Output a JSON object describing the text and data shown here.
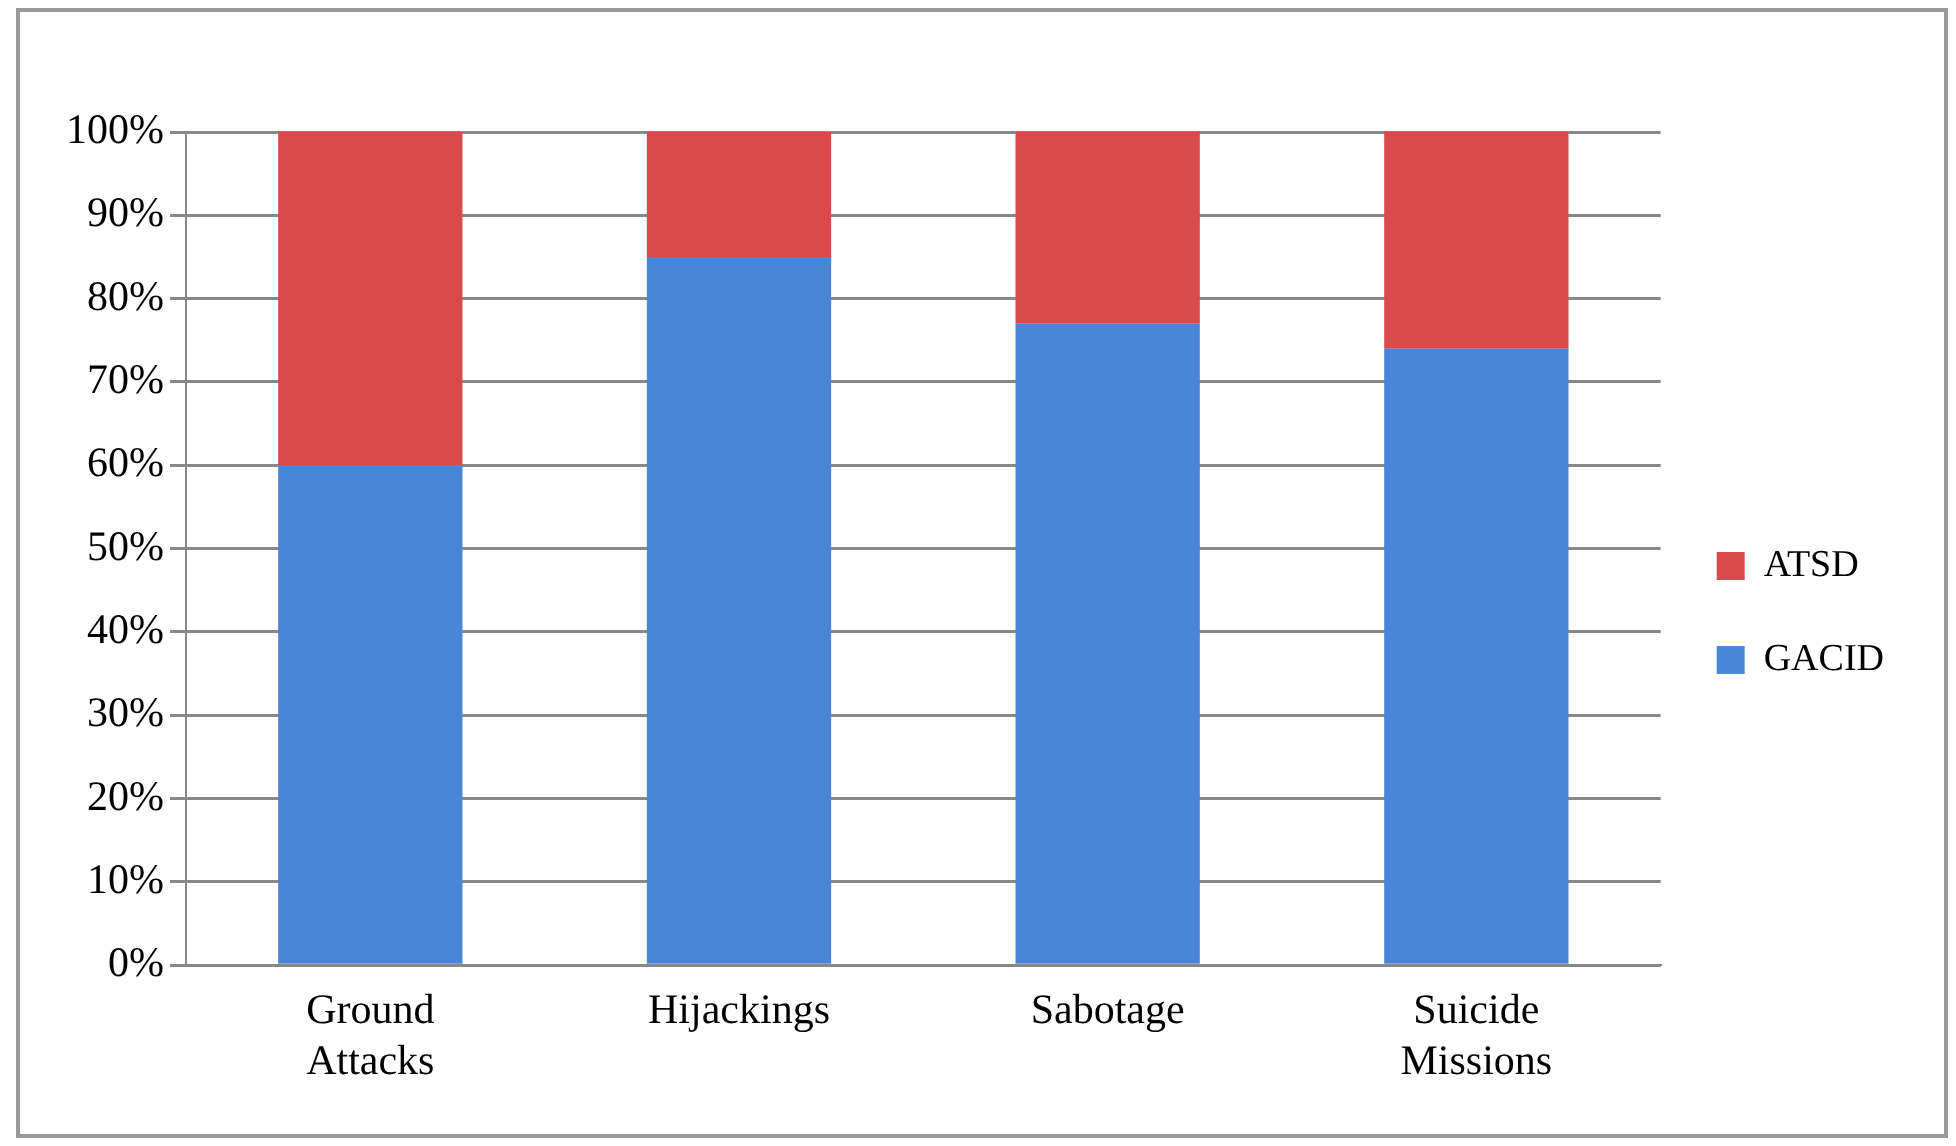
{
  "chart_data": {
    "type": "bar",
    "stacked": true,
    "categories": [
      "Ground Attacks",
      "Hijackings",
      "Sabotage",
      "Suicide Missions"
    ],
    "series": [
      {
        "name": "GACID",
        "color": "#4a86d8",
        "values": [
          60,
          85,
          77,
          74
        ]
      },
      {
        "name": "ATSD",
        "color": "#d94a4a",
        "values": [
          40,
          15,
          23,
          26
        ]
      }
    ],
    "ylim": [
      0,
      100
    ],
    "yticks": [
      {
        "value": 0,
        "label": "0%"
      },
      {
        "value": 10,
        "label": "10%"
      },
      {
        "value": 20,
        "label": "20%"
      },
      {
        "value": 30,
        "label": "30%"
      },
      {
        "value": 40,
        "label": "40%"
      },
      {
        "value": 50,
        "label": "50%"
      },
      {
        "value": 60,
        "label": "60%"
      },
      {
        "value": 70,
        "label": "70%"
      },
      {
        "value": 80,
        "label": "80%"
      },
      {
        "value": 90,
        "label": "90%"
      },
      {
        "value": 100,
        "label": "100%"
      }
    ],
    "grid": "y",
    "legend": "right"
  }
}
